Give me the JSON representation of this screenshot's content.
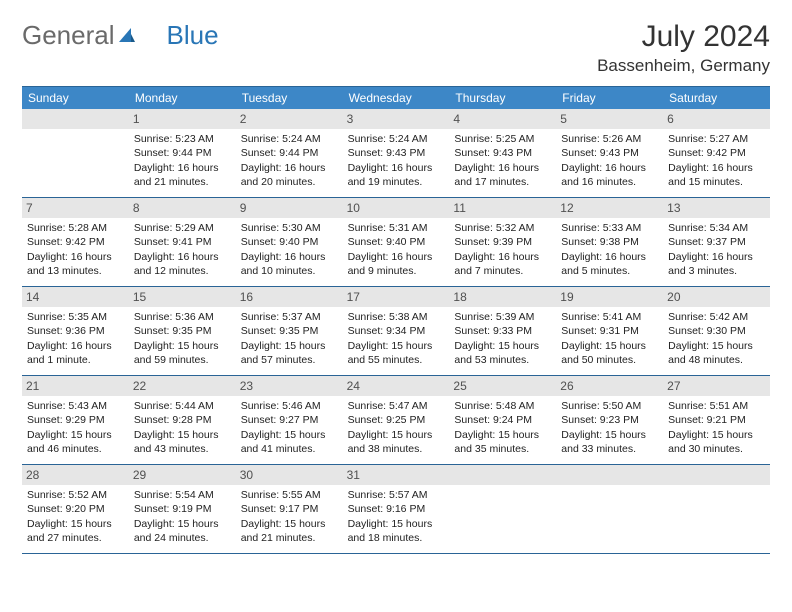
{
  "logo": {
    "part1": "General",
    "part2": "Blue"
  },
  "title": "July 2024",
  "location": "Bassenheim, Germany",
  "colors": {
    "header_bg": "#3d87c7",
    "header_border": "#2a6496",
    "daynum_bg": "#e6e6e6",
    "text": "#222222",
    "logo_gray": "#6a6a6a",
    "logo_blue": "#2976b6"
  },
  "weekdays": [
    "Sunday",
    "Monday",
    "Tuesday",
    "Wednesday",
    "Thursday",
    "Friday",
    "Saturday"
  ],
  "weeks": [
    [
      {
        "n": "",
        "sunrise": "",
        "sunset": "",
        "daylight": ""
      },
      {
        "n": "1",
        "sunrise": "Sunrise: 5:23 AM",
        "sunset": "Sunset: 9:44 PM",
        "daylight": "Daylight: 16 hours and 21 minutes."
      },
      {
        "n": "2",
        "sunrise": "Sunrise: 5:24 AM",
        "sunset": "Sunset: 9:44 PM",
        "daylight": "Daylight: 16 hours and 20 minutes."
      },
      {
        "n": "3",
        "sunrise": "Sunrise: 5:24 AM",
        "sunset": "Sunset: 9:43 PM",
        "daylight": "Daylight: 16 hours and 19 minutes."
      },
      {
        "n": "4",
        "sunrise": "Sunrise: 5:25 AM",
        "sunset": "Sunset: 9:43 PM",
        "daylight": "Daylight: 16 hours and 17 minutes."
      },
      {
        "n": "5",
        "sunrise": "Sunrise: 5:26 AM",
        "sunset": "Sunset: 9:43 PM",
        "daylight": "Daylight: 16 hours and 16 minutes."
      },
      {
        "n": "6",
        "sunrise": "Sunrise: 5:27 AM",
        "sunset": "Sunset: 9:42 PM",
        "daylight": "Daylight: 16 hours and 15 minutes."
      }
    ],
    [
      {
        "n": "7",
        "sunrise": "Sunrise: 5:28 AM",
        "sunset": "Sunset: 9:42 PM",
        "daylight": "Daylight: 16 hours and 13 minutes."
      },
      {
        "n": "8",
        "sunrise": "Sunrise: 5:29 AM",
        "sunset": "Sunset: 9:41 PM",
        "daylight": "Daylight: 16 hours and 12 minutes."
      },
      {
        "n": "9",
        "sunrise": "Sunrise: 5:30 AM",
        "sunset": "Sunset: 9:40 PM",
        "daylight": "Daylight: 16 hours and 10 minutes."
      },
      {
        "n": "10",
        "sunrise": "Sunrise: 5:31 AM",
        "sunset": "Sunset: 9:40 PM",
        "daylight": "Daylight: 16 hours and 9 minutes."
      },
      {
        "n": "11",
        "sunrise": "Sunrise: 5:32 AM",
        "sunset": "Sunset: 9:39 PM",
        "daylight": "Daylight: 16 hours and 7 minutes."
      },
      {
        "n": "12",
        "sunrise": "Sunrise: 5:33 AM",
        "sunset": "Sunset: 9:38 PM",
        "daylight": "Daylight: 16 hours and 5 minutes."
      },
      {
        "n": "13",
        "sunrise": "Sunrise: 5:34 AM",
        "sunset": "Sunset: 9:37 PM",
        "daylight": "Daylight: 16 hours and 3 minutes."
      }
    ],
    [
      {
        "n": "14",
        "sunrise": "Sunrise: 5:35 AM",
        "sunset": "Sunset: 9:36 PM",
        "daylight": "Daylight: 16 hours and 1 minute."
      },
      {
        "n": "15",
        "sunrise": "Sunrise: 5:36 AM",
        "sunset": "Sunset: 9:35 PM",
        "daylight": "Daylight: 15 hours and 59 minutes."
      },
      {
        "n": "16",
        "sunrise": "Sunrise: 5:37 AM",
        "sunset": "Sunset: 9:35 PM",
        "daylight": "Daylight: 15 hours and 57 minutes."
      },
      {
        "n": "17",
        "sunrise": "Sunrise: 5:38 AM",
        "sunset": "Sunset: 9:34 PM",
        "daylight": "Daylight: 15 hours and 55 minutes."
      },
      {
        "n": "18",
        "sunrise": "Sunrise: 5:39 AM",
        "sunset": "Sunset: 9:33 PM",
        "daylight": "Daylight: 15 hours and 53 minutes."
      },
      {
        "n": "19",
        "sunrise": "Sunrise: 5:41 AM",
        "sunset": "Sunset: 9:31 PM",
        "daylight": "Daylight: 15 hours and 50 minutes."
      },
      {
        "n": "20",
        "sunrise": "Sunrise: 5:42 AM",
        "sunset": "Sunset: 9:30 PM",
        "daylight": "Daylight: 15 hours and 48 minutes."
      }
    ],
    [
      {
        "n": "21",
        "sunrise": "Sunrise: 5:43 AM",
        "sunset": "Sunset: 9:29 PM",
        "daylight": "Daylight: 15 hours and 46 minutes."
      },
      {
        "n": "22",
        "sunrise": "Sunrise: 5:44 AM",
        "sunset": "Sunset: 9:28 PM",
        "daylight": "Daylight: 15 hours and 43 minutes."
      },
      {
        "n": "23",
        "sunrise": "Sunrise: 5:46 AM",
        "sunset": "Sunset: 9:27 PM",
        "daylight": "Daylight: 15 hours and 41 minutes."
      },
      {
        "n": "24",
        "sunrise": "Sunrise: 5:47 AM",
        "sunset": "Sunset: 9:25 PM",
        "daylight": "Daylight: 15 hours and 38 minutes."
      },
      {
        "n": "25",
        "sunrise": "Sunrise: 5:48 AM",
        "sunset": "Sunset: 9:24 PM",
        "daylight": "Daylight: 15 hours and 35 minutes."
      },
      {
        "n": "26",
        "sunrise": "Sunrise: 5:50 AM",
        "sunset": "Sunset: 9:23 PM",
        "daylight": "Daylight: 15 hours and 33 minutes."
      },
      {
        "n": "27",
        "sunrise": "Sunrise: 5:51 AM",
        "sunset": "Sunset: 9:21 PM",
        "daylight": "Daylight: 15 hours and 30 minutes."
      }
    ],
    [
      {
        "n": "28",
        "sunrise": "Sunrise: 5:52 AM",
        "sunset": "Sunset: 9:20 PM",
        "daylight": "Daylight: 15 hours and 27 minutes."
      },
      {
        "n": "29",
        "sunrise": "Sunrise: 5:54 AM",
        "sunset": "Sunset: 9:19 PM",
        "daylight": "Daylight: 15 hours and 24 minutes."
      },
      {
        "n": "30",
        "sunrise": "Sunrise: 5:55 AM",
        "sunset": "Sunset: 9:17 PM",
        "daylight": "Daylight: 15 hours and 21 minutes."
      },
      {
        "n": "31",
        "sunrise": "Sunrise: 5:57 AM",
        "sunset": "Sunset: 9:16 PM",
        "daylight": "Daylight: 15 hours and 18 minutes."
      },
      {
        "n": "",
        "sunrise": "",
        "sunset": "",
        "daylight": ""
      },
      {
        "n": "",
        "sunrise": "",
        "sunset": "",
        "daylight": ""
      },
      {
        "n": "",
        "sunrise": "",
        "sunset": "",
        "daylight": ""
      }
    ]
  ]
}
